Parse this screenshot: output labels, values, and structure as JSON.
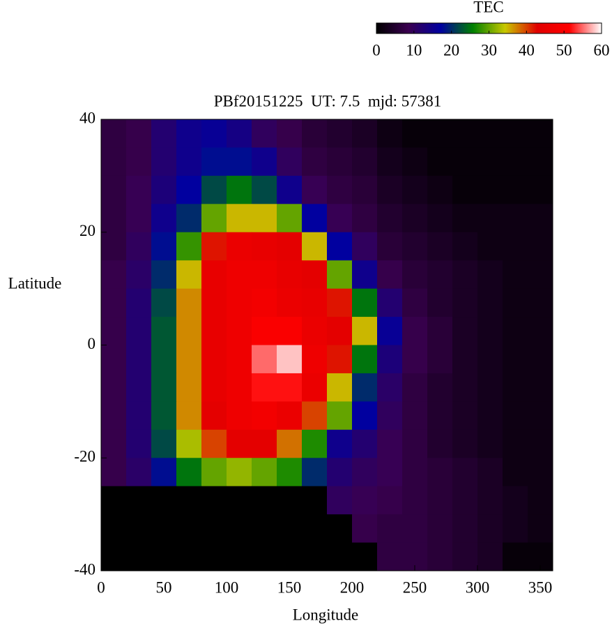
{
  "chart_data": {
    "type": "heatmap",
    "title": "PBf20151225  UT: 7.5  mjd: 57381",
    "x_label": "Longitude",
    "y_label": "Latitude",
    "colorbar_label": "TEC",
    "xlim": [
      0,
      360
    ],
    "xticks": [
      0,
      50,
      100,
      150,
      200,
      250,
      300,
      350
    ],
    "ylim": [
      -40,
      40
    ],
    "yticks": [
      -40,
      -20,
      0,
      20,
      40
    ],
    "zlim": [
      0,
      60
    ],
    "zticks": [
      0,
      10,
      20,
      30,
      40,
      50,
      60
    ],
    "colormap": [
      "#000000",
      "#3a0050",
      "#0000a0",
      "#008000",
      "#c8c800",
      "#e00000",
      "#ff0000",
      "#ffffff"
    ],
    "x": [
      10,
      30,
      50,
      70,
      90,
      110,
      130,
      150,
      170,
      190,
      210,
      230,
      250,
      270,
      290,
      310,
      330,
      350
    ],
    "y": [
      37.5,
      32.5,
      27.5,
      22.5,
      17.5,
      12.5,
      7.5,
      2.5,
      -2.5,
      -7.5,
      -12.5,
      -17.5,
      -22.5,
      -27.5,
      -32.5,
      -37.5
    ],
    "z": [
      [
        7,
        8,
        12,
        15,
        16,
        14,
        10,
        8,
        6,
        5,
        4,
        2,
        1,
        1,
        1,
        1,
        1,
        1
      ],
      [
        7,
        8,
        12,
        15,
        18,
        18,
        15,
        10,
        7,
        6,
        5,
        3,
        2,
        1,
        1,
        1,
        1,
        1
      ],
      [
        7,
        9,
        13,
        17,
        22,
        25,
        22,
        15,
        9,
        7,
        6,
        4,
        3,
        2,
        1,
        1,
        1,
        1
      ],
      [
        7,
        9,
        15,
        20,
        30,
        35,
        35,
        30,
        17,
        9,
        7,
        5,
        4,
        3,
        2,
        2,
        2,
        2
      ],
      [
        7,
        10,
        18,
        28,
        42,
        46,
        45,
        44,
        35,
        17,
        10,
        6,
        5,
        4,
        3,
        2,
        2,
        2
      ],
      [
        8,
        11,
        20,
        35,
        45,
        47,
        47,
        45,
        44,
        30,
        15,
        8,
        6,
        5,
        4,
        3,
        2,
        2
      ],
      [
        8,
        12,
        22,
        37,
        45,
        47,
        48,
        46,
        45,
        42,
        25,
        12,
        7,
        5,
        4,
        3,
        2,
        2
      ],
      [
        8,
        12,
        23,
        37,
        45,
        47,
        50,
        50,
        46,
        44,
        35,
        16,
        8,
        6,
        4,
        3,
        2,
        2
      ],
      [
        8,
        12,
        23,
        37,
        45,
        47,
        55,
        58,
        47,
        42,
        25,
        13,
        8,
        6,
        4,
        3,
        2,
        2
      ],
      [
        8,
        12,
        23,
        37,
        45,
        47,
        52,
        52,
        46,
        35,
        20,
        11,
        7,
        5,
        4,
        3,
        2,
        2
      ],
      [
        8,
        12,
        23,
        37,
        44,
        47,
        48,
        46,
        40,
        30,
        17,
        10,
        7,
        5,
        4,
        3,
        2,
        2
      ],
      [
        8,
        12,
        22,
        33,
        40,
        44,
        44,
        38,
        27,
        15,
        12,
        9,
        7,
        5,
        4,
        3,
        2,
        2
      ],
      [
        8,
        11,
        18,
        25,
        30,
        32,
        30,
        27,
        20,
        12,
        10,
        9,
        7,
        6,
        5,
        4,
        2,
        2
      ],
      [
        0,
        0,
        0,
        0,
        0,
        0,
        0,
        0,
        0,
        10,
        9,
        8,
        7,
        6,
        5,
        4,
        3,
        2
      ],
      [
        0,
        0,
        0,
        0,
        0,
        0,
        0,
        0,
        0,
        0,
        8,
        7,
        7,
        6,
        5,
        4,
        3,
        2
      ],
      [
        0,
        0,
        0,
        0,
        0,
        0,
        0,
        0,
        0,
        0,
        0,
        7,
        7,
        6,
        5,
        4,
        1,
        1
      ]
    ]
  }
}
